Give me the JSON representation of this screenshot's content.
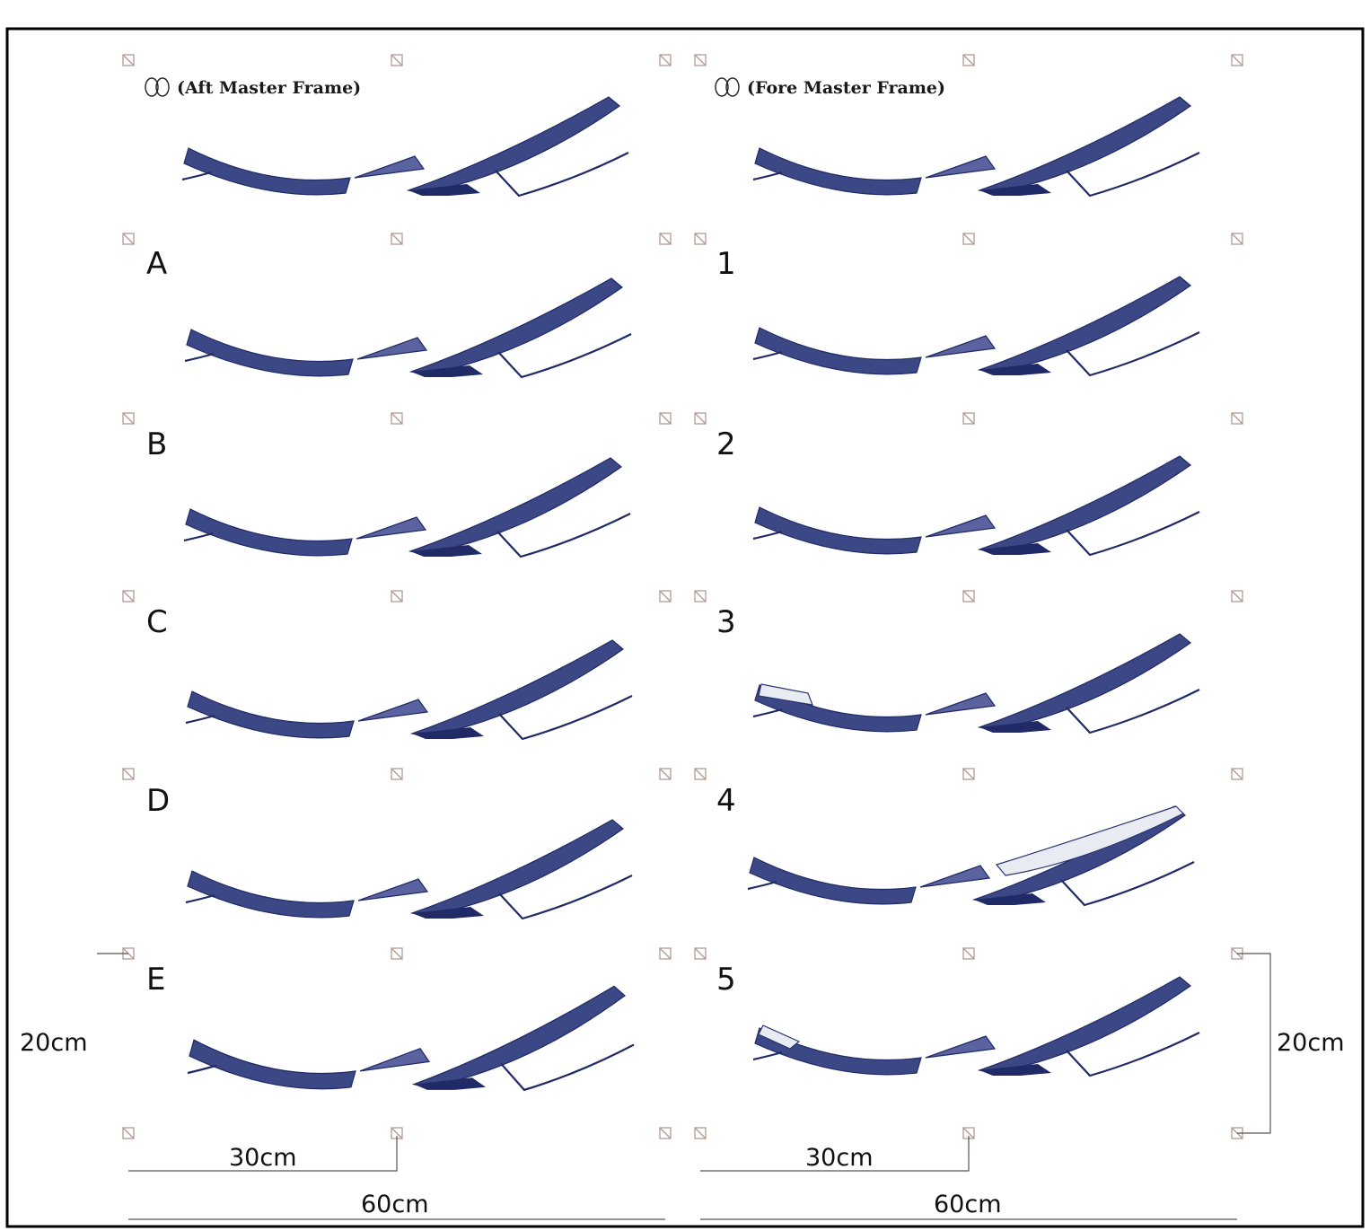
{
  "panels": {
    "left": {
      "header": "(Aft Master Frame)",
      "labels": [
        "A",
        "B",
        "C",
        "D",
        "E"
      ]
    },
    "right": {
      "header": "(Fore Master Frame)",
      "labels": [
        "1",
        "2",
        "3",
        "4",
        "5"
      ]
    }
  },
  "dimensions": {
    "height_left": "20cm",
    "height_right": "20cm",
    "half_left": "30cm",
    "half_right": "30cm",
    "full_left": "60cm",
    "full_right": "60cm"
  },
  "colors": {
    "section": "#2b3578",
    "marker": "#b39a94",
    "border": "#000000"
  }
}
